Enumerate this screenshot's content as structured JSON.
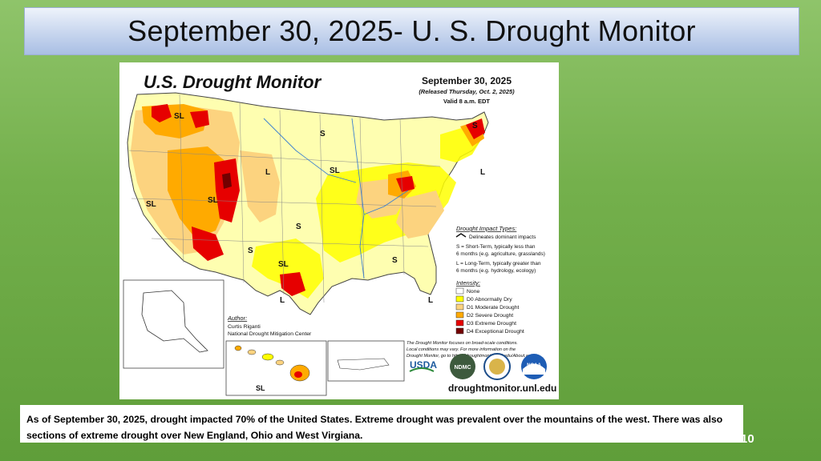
{
  "slide": {
    "title": "September 30, 2025- U. S. Drought Monitor",
    "caption": "As of September 30, 2025, drought impacted 70% of the United States.  Extreme drought was prevalent over the mountains of the west.  There was also sections of extreme drought over New England, Ohio and West Virgiana.",
    "slide_number": "10"
  },
  "map": {
    "heading": "U.S. Drought Monitor",
    "date": "September 30, 2025",
    "released": "(Released Thursday, Oct. 2, 2025)",
    "valid": "Valid 8 a.m. EDT",
    "impact_types": {
      "title": "Drought Impact Types:",
      "delineates": "Delineates dominant impacts",
      "short_term_1": "S = Short-Term, typically less than",
      "short_term_2": "6 months (e.g. agriculture, grasslands)",
      "long_term_1": "L = Long-Term, typically greater than",
      "long_term_2": "6 months (e.g. hydrology, ecology)"
    },
    "intensity": {
      "title": "Intensity:",
      "items": [
        {
          "label": "None",
          "color": "#ffffff"
        },
        {
          "label": "D0 Abnormally Dry",
          "color": "#ffff00"
        },
        {
          "label": "D1 Moderate Drought",
          "color": "#fcd37f"
        },
        {
          "label": "D2 Severe Drought",
          "color": "#ffaa00"
        },
        {
          "label": "D3 Extreme Drought",
          "color": "#e60000"
        },
        {
          "label": "D4 Exceptional Drought",
          "color": "#730000"
        }
      ]
    },
    "note": {
      "line1": "The Drought Monitor focuses on broad-scale conditions.",
      "line2": "Local conditions may vary. For more information on the",
      "line3": "Drought Monitor, go to https://droughtmonitor.unl.edu/About.aspx"
    },
    "author": {
      "label": "Author:",
      "name": "Curtis Riganti",
      "org": "National Drought Mitigation Center"
    },
    "logos": {
      "usda": "USDA",
      "ndmc": "NDMC",
      "noaa": "NOAA"
    },
    "website": "droughtmonitor.unl.edu",
    "impact_labels": {
      "s": "S",
      "l": "L",
      "sl": "SL"
    }
  }
}
